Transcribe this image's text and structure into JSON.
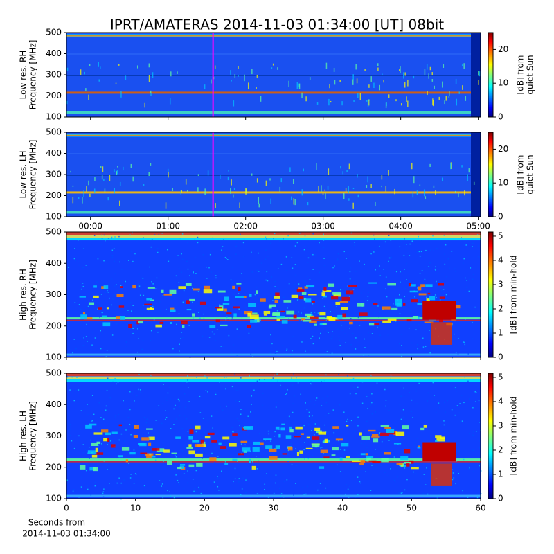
{
  "title": "IPRT/AMATERAS 2014-11-03 01:34:00 [UT]   08bit",
  "xlabel": [
    "Seconds from",
    "2014-11-03 01:34:00"
  ],
  "chart_data": [
    {
      "type": "heatmap",
      "ylabel": [
        "Low res. RH",
        "Frequency [MHz]"
      ],
      "ylim": [
        100,
        500
      ],
      "yticks": [
        100,
        200,
        300,
        400,
        500
      ],
      "xlim": [
        -0.31,
        5.03
      ],
      "xticks": [
        0,
        1,
        2,
        3,
        4,
        5
      ],
      "vline": {
        "value": 1.58,
        "color": "#ff00ff"
      },
      "colorbar": {
        "label": [
          "[dB] from",
          "quiet Sun"
        ],
        "clim": [
          0,
          25
        ],
        "ticks": [
          0,
          10,
          20
        ]
      }
    },
    {
      "type": "heatmap",
      "ylabel": [
        "Low res. LH",
        "Frequency [MHz]"
      ],
      "ylim": [
        100,
        500
      ],
      "yticks": [
        100,
        200,
        300,
        400,
        500
      ],
      "xlim": [
        -0.31,
        5.03
      ],
      "xticks": [
        {
          "value": 0,
          "label": "00:00"
        },
        {
          "value": 1,
          "label": "01:00"
        },
        {
          "value": 2,
          "label": "02:00"
        },
        {
          "value": 3,
          "label": "03:00"
        },
        {
          "value": 4,
          "label": "04:00"
        },
        {
          "value": 5,
          "label": "05:00"
        }
      ],
      "vline": {
        "value": 1.58,
        "color": "#ff00ff"
      },
      "colorbar": {
        "label": [
          "[dB] from",
          "quiet Sun"
        ],
        "clim": [
          0,
          25
        ],
        "ticks": [
          0,
          10,
          20
        ]
      }
    },
    {
      "type": "heatmap",
      "ylabel": [
        "High res. RH",
        "Frequency [MHz]"
      ],
      "ylim": [
        100,
        500
      ],
      "yticks": [
        100,
        200,
        300,
        400,
        500
      ],
      "xlim": [
        0,
        60
      ],
      "xticks": [
        0,
        10,
        20,
        30,
        40,
        50,
        60
      ],
      "colorbar": {
        "label": [
          "[dB] from min-hold"
        ],
        "clim": [
          0,
          5.17
        ],
        "ticks": [
          0,
          1,
          2,
          3,
          4,
          5
        ]
      }
    },
    {
      "type": "heatmap",
      "ylabel": [
        "High res. LH",
        "Frequency [MHz]"
      ],
      "ylim": [
        100,
        500
      ],
      "yticks": [
        100,
        200,
        300,
        400,
        500
      ],
      "xlim": [
        0,
        60
      ],
      "xticks": [
        0,
        10,
        20,
        30,
        40,
        50,
        60
      ],
      "colorbar": {
        "label": [
          "[dB] from min-hold"
        ],
        "clim": [
          0,
          5.17
        ],
        "ticks": [
          0,
          1,
          2,
          3,
          4,
          5
        ]
      }
    }
  ]
}
